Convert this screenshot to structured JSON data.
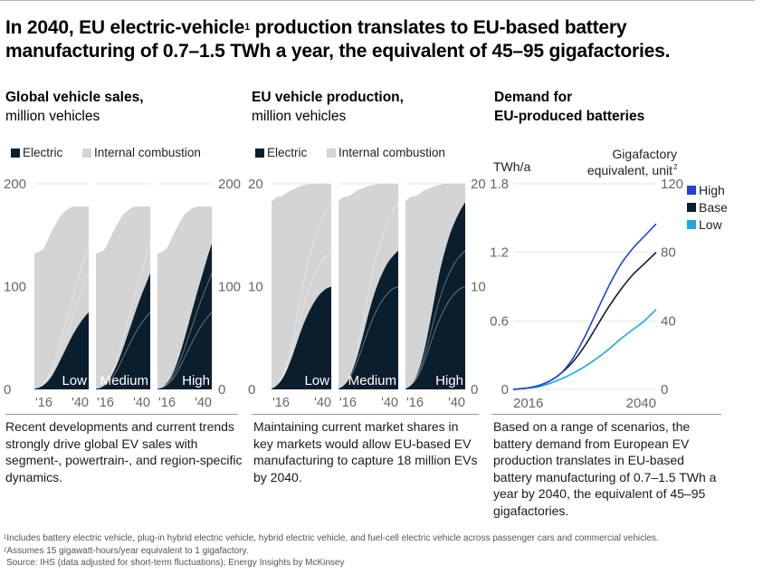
{
  "headline": {
    "part1": "In 2040, EU electric-vehicle",
    "sup": "1",
    "part2": " production translates to EU-based battery manufacturing of 0.7–1.5 TWh a year, the equivalent of 45–95 gigafactories."
  },
  "colors": {
    "electric": "#0a1e2e",
    "ice": "#d4d4d4",
    "high": "#2243d9",
    "base": "#0a1e2e",
    "low": "#1ea6e3",
    "grid": "#e6e6e6",
    "axis_text": "#666666"
  },
  "panels": [
    {
      "title_bold": "Global vehicle sales,",
      "title_sub": "million vehicles",
      "legend": [
        "Electric",
        "Internal combustion"
      ],
      "description": "Recent developments and current trends strongly drive global EV sales with segment-, powertrain-, and region-specific dynamics."
    },
    {
      "title_bold": "EU vehicle production,",
      "title_sub": "million vehicles",
      "legend": [
        "Electric",
        "Internal combustion"
      ],
      "description": "Maintaining current market shares in key markets would allow EU-based EV manufacturing to capture 18 million EVs by 2040."
    },
    {
      "title_bold": "Demand for",
      "title_bold2": "EU-produced batteries",
      "y_left_label": "TWh/a",
      "y_right_label_line1": "Gigafactory",
      "y_right_label_line2": "equivalent, unit",
      "y_right_label_sup": "2",
      "legend": [
        "High",
        "Base",
        "Low"
      ],
      "description": "Based on a range of scenarios, the battery demand from European EV production translates in EU-based battery manufacturing of 0.7–1.5 TWh a year by 2040, the equivalent of 45–95 gigafactories."
    }
  ],
  "footnotes": {
    "f1_sup": "1",
    "f1": "Includes battery electric vehicle, plug-in hybrid electric vehicle, hybrid electric vehicle, and fuel-cell electric vehicle across passenger cars and commercial vehicles.",
    "f2_sup": "2",
    "f2": "Assumes 15 gigawatt-hours/year equivalent to 1 gigafactory.",
    "source": "Source: IHS (data adjusted for short-term fluctuations); Energy Insights by McKinsey"
  },
  "chart_data": [
    {
      "type": "area",
      "title": "Global vehicle sales, million vehicles",
      "ylim": [
        0,
        200
      ],
      "yticks": [
        0,
        100,
        200
      ],
      "xtick_labels": [
        "'16",
        "'40"
      ],
      "x": [
        2016,
        2018,
        2020,
        2022,
        2024,
        2026,
        2028,
        2030,
        2032,
        2034,
        2036,
        2038,
        2040
      ],
      "legend": [
        "Electric",
        "Internal combustion"
      ],
      "total": [
        132,
        134,
        137,
        146,
        155,
        163,
        170,
        174,
        177,
        178,
        178,
        178,
        178
      ],
      "scenarios": [
        {
          "name": "Low",
          "electric": [
            1,
            2,
            4,
            8,
            14,
            22,
            31,
            40,
            49,
            57,
            64,
            70,
            75
          ]
        },
        {
          "name": "Medium",
          "electric": [
            1,
            2,
            5,
            10,
            18,
            28,
            40,
            53,
            66,
            79,
            91,
            102,
            113
          ]
        },
        {
          "name": "High",
          "electric": [
            1,
            2,
            6,
            12,
            22,
            35,
            50,
            66,
            82,
            98,
            113,
            128,
            142
          ]
        }
      ]
    },
    {
      "type": "area",
      "title": "EU vehicle production, million vehicles",
      "ylim": [
        0,
        20
      ],
      "yticks": [
        0,
        10,
        20
      ],
      "xtick_labels": [
        "'16",
        "'40"
      ],
      "x": [
        2016,
        2018,
        2020,
        2022,
        2024,
        2026,
        2028,
        2030,
        2032,
        2034,
        2036,
        2038,
        2040
      ],
      "legend": [
        "Electric",
        "Internal combustion"
      ],
      "total": [
        18.3,
        18.7,
        18.8,
        19.1,
        19.4,
        19.6,
        19.8,
        19.9,
        20.0,
        20.0,
        20.0,
        20.0,
        20.0
      ],
      "scenarios": [
        {
          "name": "Low",
          "electric": [
            0.1,
            0.4,
            0.9,
            1.8,
            3.0,
            4.4,
            5.8,
            7.0,
            8.0,
            8.8,
            9.4,
            9.8,
            10.0
          ]
        },
        {
          "name": "Medium",
          "electric": [
            0.1,
            0.4,
            1.0,
            2.1,
            3.6,
            5.4,
            7.3,
            9.0,
            10.4,
            11.5,
            12.4,
            13.0,
            13.5
          ]
        },
        {
          "name": "High",
          "electric": [
            0.1,
            0.4,
            1.1,
            2.4,
            4.3,
            6.7,
            9.3,
            11.7,
            13.6,
            15.2,
            16.4,
            17.4,
            18.2
          ]
        }
      ]
    },
    {
      "type": "line",
      "title": "Demand for EU-produced batteries",
      "ylabel_left": "TWh/a",
      "ylabel_right": "Gigafactory equivalent, unit",
      "ylim": [
        0,
        1.8
      ],
      "yticks_left": [
        0,
        0.6,
        1.2,
        1.8
      ],
      "yticks_right": [
        0,
        40,
        80,
        120
      ],
      "xtick_labels": [
        "2016",
        "2040"
      ],
      "x": [
        2016,
        2018,
        2020,
        2022,
        2024,
        2026,
        2028,
        2030,
        2032,
        2034,
        2036,
        2038,
        2040
      ],
      "series": [
        {
          "name": "High",
          "values": [
            0.0,
            0.01,
            0.03,
            0.07,
            0.14,
            0.27,
            0.46,
            0.68,
            0.9,
            1.09,
            1.23,
            1.34,
            1.45
          ]
        },
        {
          "name": "Base",
          "values": [
            0.0,
            0.01,
            0.03,
            0.07,
            0.14,
            0.24,
            0.38,
            0.55,
            0.72,
            0.87,
            1.0,
            1.1,
            1.2
          ]
        },
        {
          "name": "Low",
          "values": [
            0.0,
            0.01,
            0.02,
            0.05,
            0.09,
            0.14,
            0.2,
            0.27,
            0.35,
            0.44,
            0.52,
            0.6,
            0.7
          ]
        }
      ]
    }
  ]
}
